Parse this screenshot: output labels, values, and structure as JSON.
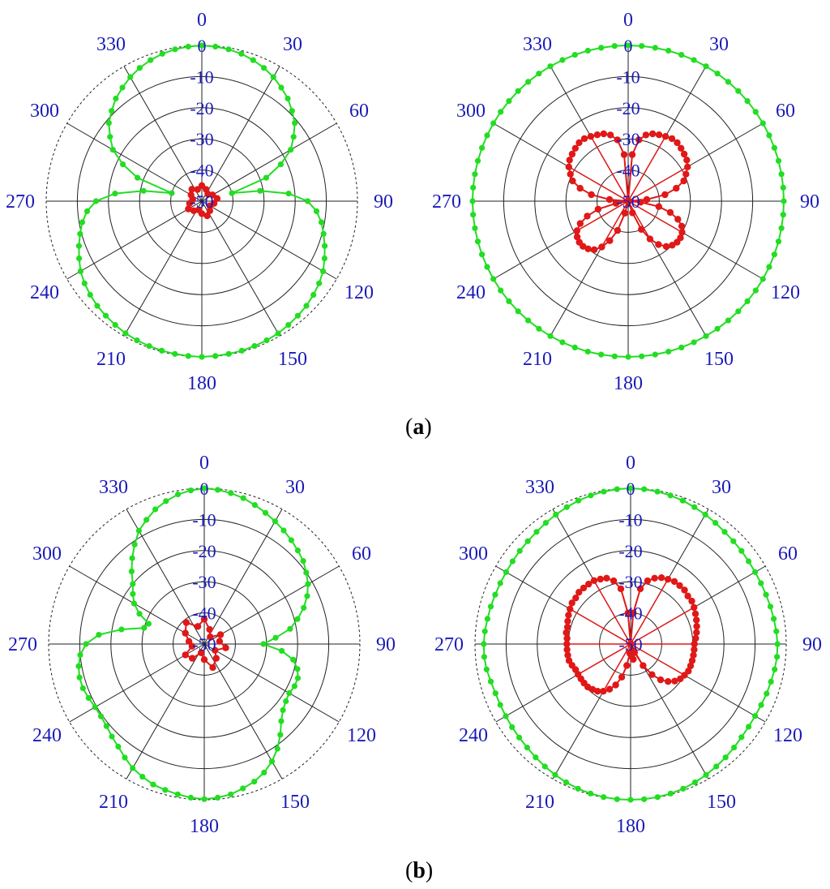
{
  "panel_labels": [
    "a",
    "b"
  ],
  "colors": {
    "green": "#22dd22",
    "red": "#e01818",
    "label": "#1a1ab8"
  },
  "chart_data": [
    {
      "type": "polar",
      "panel": "a",
      "position": "left",
      "angular_ticks": [
        "0",
        "30",
        "60",
        "90",
        "120",
        "150",
        "180",
        "210",
        "240",
        "270",
        "300",
        "330"
      ],
      "radial_ticks": [
        "0",
        "-10",
        "-20",
        "-30",
        "-40",
        "-50"
      ],
      "rlim": [
        -50,
        0
      ],
      "series": [
        {
          "color": "green",
          "theta": [
            0,
            5,
            10,
            15,
            20,
            25,
            30,
            35,
            40,
            45,
            50,
            55,
            60,
            65,
            70,
            75,
            80,
            85,
            90,
            95,
            100,
            105,
            110,
            115,
            120,
            125,
            130,
            135,
            140,
            145,
            150,
            155,
            160,
            165,
            170,
            175,
            180,
            185,
            190,
            195,
            200,
            205,
            210,
            215,
            220,
            225,
            230,
            235,
            240,
            245,
            250,
            255,
            260,
            265,
            270,
            275,
            280,
            285,
            290,
            295,
            300,
            305,
            310,
            315,
            320,
            325,
            330,
            335,
            340,
            345,
            350,
            355
          ],
          "r": [
            0,
            -0.2,
            -0.5,
            -1,
            -1.8,
            -2.8,
            -4,
            -5.5,
            -7,
            -9,
            -11,
            -14,
            -17,
            -22,
            -28,
            -40,
            -31,
            -22,
            -16,
            -13,
            -11,
            -9.5,
            -8,
            -6.5,
            -5,
            -4,
            -3.2,
            -2.5,
            -2,
            -1.5,
            -1,
            -0.7,
            -0.5,
            -0.3,
            -0.2,
            -0.1,
            0,
            -0.1,
            -0.2,
            -0.3,
            -0.5,
            -0.7,
            -1,
            -1.5,
            -2,
            -2.5,
            -3.2,
            -4,
            -5,
            -6.5,
            -8,
            -9.5,
            -11,
            -13,
            -16,
            -22,
            -31,
            -40,
            -28,
            -22,
            -17,
            -14,
            -11,
            -9,
            -7,
            -5.5,
            -4,
            -2.8,
            -1.8,
            -1,
            -0.5,
            -0.2
          ]
        },
        {
          "color": "red",
          "theta": [
            0,
            20,
            40,
            60,
            80,
            100,
            120,
            140,
            160,
            180,
            200,
            220,
            240,
            260,
            280,
            300,
            320,
            340
          ],
          "r": [
            -45,
            -46,
            -47,
            -46,
            -45,
            -46,
            -47,
            -46,
            -45,
            -46,
            -47,
            -46,
            -45,
            -46,
            -47,
            -46,
            -45,
            -46
          ]
        }
      ]
    },
    {
      "type": "polar",
      "panel": "a",
      "position": "right",
      "angular_ticks": [
        "0",
        "30",
        "60",
        "90",
        "120",
        "150",
        "180",
        "210",
        "240",
        "270",
        "300",
        "330"
      ],
      "radial_ticks": [
        "0",
        "-10",
        "-20",
        "-30",
        "-40",
        "-50"
      ],
      "rlim": [
        -50,
        0
      ],
      "series": [
        {
          "color": "green",
          "theta": [
            0,
            5,
            10,
            15,
            20,
            25,
            30,
            35,
            40,
            45,
            50,
            55,
            60,
            65,
            70,
            75,
            80,
            85,
            90,
            95,
            100,
            105,
            110,
            115,
            120,
            125,
            130,
            135,
            140,
            145,
            150,
            155,
            160,
            165,
            170,
            175,
            180,
            185,
            190,
            195,
            200,
            205,
            210,
            215,
            220,
            225,
            230,
            235,
            240,
            245,
            250,
            255,
            260,
            265,
            270,
            275,
            280,
            285,
            290,
            295,
            300,
            305,
            310,
            315,
            320,
            325,
            330,
            335,
            340,
            345,
            350,
            355
          ],
          "r": [
            0,
            0,
            0,
            0,
            0,
            0,
            0,
            0,
            0,
            0,
            0,
            0,
            0,
            0,
            0,
            0,
            0,
            0,
            0,
            0,
            0,
            0,
            0,
            0,
            0,
            0,
            0,
            0,
            0,
            0,
            0,
            0,
            0,
            0,
            0,
            0,
            0,
            0,
            0,
            0,
            0,
            0,
            0,
            0,
            0,
            0,
            0,
            0,
            0,
            0,
            0,
            0,
            0,
            0,
            0,
            0,
            0,
            0,
            0,
            0,
            0,
            0,
            0,
            0,
            0,
            0,
            0,
            0,
            0,
            0,
            0,
            0
          ]
        },
        {
          "color": "red",
          "theta": [
            0,
            5,
            10,
            15,
            20,
            25,
            30,
            35,
            40,
            45,
            50,
            55,
            60,
            65,
            70,
            75,
            80,
            85,
            90,
            95,
            100,
            105,
            110,
            115,
            120,
            125,
            130,
            135,
            140,
            145,
            150,
            155,
            160,
            165,
            170,
            175,
            180,
            185,
            190,
            195,
            200,
            205,
            210,
            215,
            220,
            225,
            230,
            235,
            240,
            245,
            250,
            255,
            260,
            265,
            270,
            275,
            280,
            285,
            290,
            295,
            300,
            305,
            310,
            315,
            320,
            325,
            330,
            335,
            340,
            345,
            350,
            355
          ],
          "r": [
            -50,
            -35,
            -30,
            -28,
            -27,
            -26.5,
            -26,
            -25.5,
            -25.5,
            -26,
            -26.5,
            -27,
            -28,
            -29.5,
            -31,
            -34,
            -38,
            -44,
            -50,
            -46,
            -40,
            -36,
            -33,
            -31,
            -30,
            -29.5,
            -29.5,
            -30,
            -31,
            -33,
            -36,
            -40,
            -46,
            -50,
            -50,
            -50,
            -50,
            -50,
            -50,
            -46,
            -40,
            -36,
            -33,
            -31,
            -30,
            -29.5,
            -29.5,
            -30,
            -31,
            -33,
            -36,
            -40,
            -46,
            -50,
            -50,
            -44,
            -38,
            -34,
            -31,
            -29.5,
            -28,
            -27,
            -26.5,
            -26,
            -25.5,
            -25.5,
            -26,
            -26.5,
            -27,
            -28,
            -30,
            -35
          ]
        }
      ]
    },
    {
      "type": "polar",
      "panel": "b",
      "position": "left",
      "angular_ticks": [
        "0",
        "30",
        "60",
        "90",
        "120",
        "150",
        "180",
        "210",
        "240",
        "270",
        "300",
        "330"
      ],
      "radial_ticks": [
        "0",
        "-10",
        "-20",
        "-30",
        "-40",
        "-50"
      ],
      "rlim": [
        -50,
        0
      ],
      "series": [
        {
          "color": "green",
          "theta": [
            0,
            5,
            10,
            15,
            20,
            25,
            30,
            35,
            40,
            45,
            50,
            55,
            60,
            65,
            70,
            75,
            80,
            85,
            90,
            95,
            100,
            105,
            110,
            115,
            120,
            125,
            130,
            135,
            140,
            145,
            150,
            155,
            160,
            165,
            170,
            175,
            180,
            185,
            190,
            195,
            200,
            205,
            210,
            215,
            220,
            225,
            230,
            235,
            240,
            245,
            250,
            255,
            260,
            265,
            270,
            275,
            280,
            285,
            290,
            295,
            300,
            305,
            310,
            315,
            320,
            325,
            330,
            335,
            340,
            345,
            350,
            355
          ],
          "r": [
            0,
            -0.3,
            -0.8,
            -1.5,
            -2.5,
            -3.5,
            -4.5,
            -5.5,
            -6.5,
            -7.5,
            -8.5,
            -10,
            -11.5,
            -13.5,
            -16,
            -19,
            -22,
            -27,
            -31,
            -25,
            -21,
            -19,
            -18,
            -18,
            -18.5,
            -18,
            -17,
            -15,
            -12,
            -9,
            -6.5,
            -4.5,
            -3,
            -2,
            -1,
            -0.5,
            -0.2,
            -0.5,
            -1,
            -1.5,
            -2,
            -3,
            -4,
            -5.5,
            -7,
            -8,
            -9,
            -9.5,
            -9.5,
            -9,
            -8.5,
            -8.5,
            -9,
            -10,
            -12,
            -16,
            -23,
            -30,
            -31,
            -27,
            -24,
            -22,
            -20,
            -17,
            -14,
            -11,
            -8,
            -6,
            -4,
            -2.5,
            -1.2,
            -0.5
          ]
        },
        {
          "color": "red",
          "theta": [
            0,
            20,
            40,
            60,
            80,
            100,
            120,
            140,
            160,
            180,
            200,
            220,
            240,
            260,
            280,
            300,
            320,
            340
          ],
          "r": [
            -42,
            -45,
            -47,
            -44,
            -45,
            -43,
            -46,
            -44,
            -42,
            -45,
            -47,
            -44,
            -43,
            -46,
            -45,
            -43,
            -41,
            -44
          ]
        }
      ]
    },
    {
      "type": "polar",
      "panel": "b",
      "position": "right",
      "angular_ticks": [
        "0",
        "30",
        "60",
        "90",
        "120",
        "150",
        "180",
        "210",
        "240",
        "270",
        "300",
        "330"
      ],
      "radial_ticks": [
        "0",
        "-10",
        "-20",
        "-30",
        "-40",
        "-50"
      ],
      "rlim": [
        -50,
        0
      ],
      "series": [
        {
          "color": "green",
          "theta": [
            0,
            5,
            10,
            15,
            20,
            25,
            30,
            35,
            40,
            45,
            50,
            55,
            60,
            65,
            70,
            75,
            80,
            85,
            90,
            95,
            100,
            105,
            110,
            115,
            120,
            125,
            130,
            135,
            140,
            145,
            150,
            155,
            160,
            165,
            170,
            175,
            180,
            185,
            190,
            195,
            200,
            205,
            210,
            215,
            220,
            225,
            230,
            235,
            240,
            245,
            250,
            255,
            260,
            265,
            270,
            275,
            280,
            285,
            290,
            295,
            300,
            305,
            310,
            315,
            320,
            325,
            330,
            335,
            340,
            345,
            350,
            355
          ],
          "r": [
            0,
            -0.1,
            -0.3,
            -0.6,
            -1,
            -1.5,
            -2,
            -2.5,
            -3,
            -3.3,
            -3.5,
            -3.7,
            -3.8,
            -3.8,
            -3.7,
            -3.5,
            -3.3,
            -3,
            -2.8,
            -2.8,
            -3,
            -3.3,
            -3.5,
            -3.7,
            -3.8,
            -3.7,
            -3.5,
            -3,
            -2.5,
            -2,
            -1.5,
            -1,
            -0.6,
            -0.3,
            -0.1,
            0,
            0,
            0,
            -0.1,
            -0.3,
            -0.6,
            -1,
            -1.5,
            -2,
            -2.5,
            -3,
            -3.3,
            -3.5,
            -3.7,
            -3.8,
            -3.8,
            -3.5,
            -3,
            -2.8,
            -2.8,
            -3,
            -3.3,
            -3.5,
            -3.7,
            -3.8,
            -3.8,
            -3.7,
            -3.5,
            -3.3,
            -3,
            -2.5,
            -2,
            -1.5,
            -1,
            -0.6,
            -0.3,
            -0.1
          ]
        },
        {
          "color": "red",
          "theta": [
            0,
            5,
            10,
            15,
            20,
            25,
            30,
            35,
            40,
            45,
            50,
            55,
            60,
            65,
            70,
            75,
            80,
            85,
            90,
            95,
            100,
            105,
            110,
            115,
            120,
            125,
            130,
            135,
            140,
            145,
            150,
            155,
            160,
            165,
            170,
            175,
            180,
            185,
            190,
            195,
            200,
            205,
            210,
            215,
            220,
            225,
            230,
            235,
            240,
            245,
            250,
            255,
            260,
            265,
            270,
            275,
            280,
            285,
            290,
            295,
            300,
            305,
            310,
            315,
            320,
            325,
            330,
            335,
            340,
            345,
            350,
            355
          ],
          "r": [
            -50,
            -40,
            -32,
            -29,
            -27.5,
            -26.5,
            -26,
            -25.5,
            -25.5,
            -25.5,
            -26,
            -26,
            -26.5,
            -27,
            -27.5,
            -28,
            -28.5,
            -29,
            -29.5,
            -29.5,
            -29.5,
            -29.5,
            -29.5,
            -29.5,
            -30,
            -30.5,
            -31.5,
            -33,
            -35,
            -38,
            -42,
            -47,
            -50,
            -48,
            -45,
            -46,
            -50,
            -47,
            -43,
            -39,
            -36,
            -34,
            -32.5,
            -31.5,
            -31,
            -30.5,
            -30.5,
            -30.5,
            -30.5,
            -30.5,
            -30,
            -29.5,
            -29.5,
            -29.5,
            -29.5,
            -29.5,
            -29,
            -29,
            -28.5,
            -28,
            -27.5,
            -27,
            -27,
            -26.5,
            -26.5,
            -26.5,
            -26.5,
            -27,
            -27.5,
            -29,
            -32,
            -40
          ]
        }
      ]
    }
  ]
}
